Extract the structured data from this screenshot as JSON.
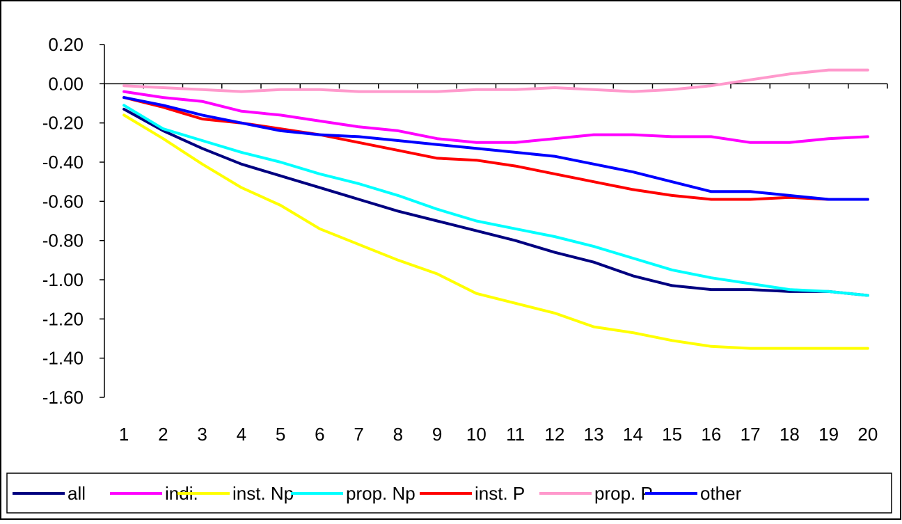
{
  "chart_data": {
    "type": "line",
    "title": "",
    "xlabel": "",
    "ylabel": "",
    "x": [
      "1",
      "2",
      "3",
      "4",
      "5",
      "6",
      "7",
      "8",
      "9",
      "10",
      "11",
      "12",
      "13",
      "14",
      "15",
      "16",
      "17",
      "18",
      "19",
      "20"
    ],
    "ylim": [
      -1.6,
      0.2
    ],
    "yticks": [
      0.2,
      0.0,
      -0.2,
      -0.4,
      -0.6,
      -0.8,
      -1.0,
      -1.2,
      -1.4,
      -1.6
    ],
    "ytick_labels": [
      "0.20",
      "0.00",
      "-0.20",
      "-0.40",
      "-0.60",
      "-0.80",
      "-1.00",
      "-1.20",
      "-1.40",
      "-1.60"
    ],
    "grid": false,
    "legend_position": "bottom",
    "series": [
      {
        "name": "all",
        "color": "#000080",
        "values": [
          -0.13,
          -0.24,
          -0.33,
          -0.41,
          -0.47,
          -0.53,
          -0.59,
          -0.65,
          -0.7,
          -0.75,
          -0.8,
          -0.86,
          -0.91,
          -0.98,
          -1.03,
          -1.05,
          -1.05,
          -1.06,
          -1.06,
          -1.08
        ]
      },
      {
        "name": "indi.",
        "color": "#FF00FF",
        "values": [
          -0.04,
          -0.07,
          -0.09,
          -0.14,
          -0.16,
          -0.19,
          -0.22,
          -0.24,
          -0.28,
          -0.3,
          -0.3,
          -0.28,
          -0.26,
          -0.26,
          -0.27,
          -0.27,
          -0.3,
          -0.3,
          -0.28,
          -0.27
        ]
      },
      {
        "name": "inst. Np",
        "color": "#FFFF00",
        "values": [
          -0.16,
          -0.28,
          -0.41,
          -0.53,
          -0.62,
          -0.74,
          -0.82,
          -0.9,
          -0.97,
          -1.07,
          -1.12,
          -1.17,
          -1.24,
          -1.27,
          -1.31,
          -1.34,
          -1.35,
          -1.35,
          -1.35,
          -1.35
        ]
      },
      {
        "name": "prop. Np",
        "color": "#00FFFF",
        "values": [
          -0.11,
          -0.23,
          -0.29,
          -0.35,
          -0.4,
          -0.46,
          -0.51,
          -0.57,
          -0.64,
          -0.7,
          -0.74,
          -0.78,
          -0.83,
          -0.89,
          -0.95,
          -0.99,
          -1.02,
          -1.05,
          -1.06,
          -1.08
        ]
      },
      {
        "name": "inst. P",
        "color": "#FF0000",
        "values": [
          -0.07,
          -0.12,
          -0.18,
          -0.2,
          -0.23,
          -0.26,
          -0.3,
          -0.34,
          -0.38,
          -0.39,
          -0.42,
          -0.46,
          -0.5,
          -0.54,
          -0.57,
          -0.59,
          -0.59,
          -0.58,
          -0.59,
          -0.59
        ]
      },
      {
        "name": "prop. P",
        "color": "#FF99CC",
        "values": [
          -0.01,
          -0.02,
          -0.03,
          -0.04,
          -0.03,
          -0.03,
          -0.04,
          -0.04,
          -0.04,
          -0.03,
          -0.03,
          -0.02,
          -0.03,
          -0.04,
          -0.03,
          -0.01,
          0.02,
          0.05,
          0.07,
          0.07
        ]
      },
      {
        "name": "other",
        "color": "#0000FF",
        "values": [
          -0.07,
          -0.11,
          -0.16,
          -0.2,
          -0.24,
          -0.26,
          -0.27,
          -0.29,
          -0.31,
          -0.33,
          -0.35,
          -0.37,
          -0.41,
          -0.45,
          -0.5,
          -0.55,
          -0.55,
          -0.57,
          -0.59,
          -0.59
        ]
      }
    ]
  }
}
